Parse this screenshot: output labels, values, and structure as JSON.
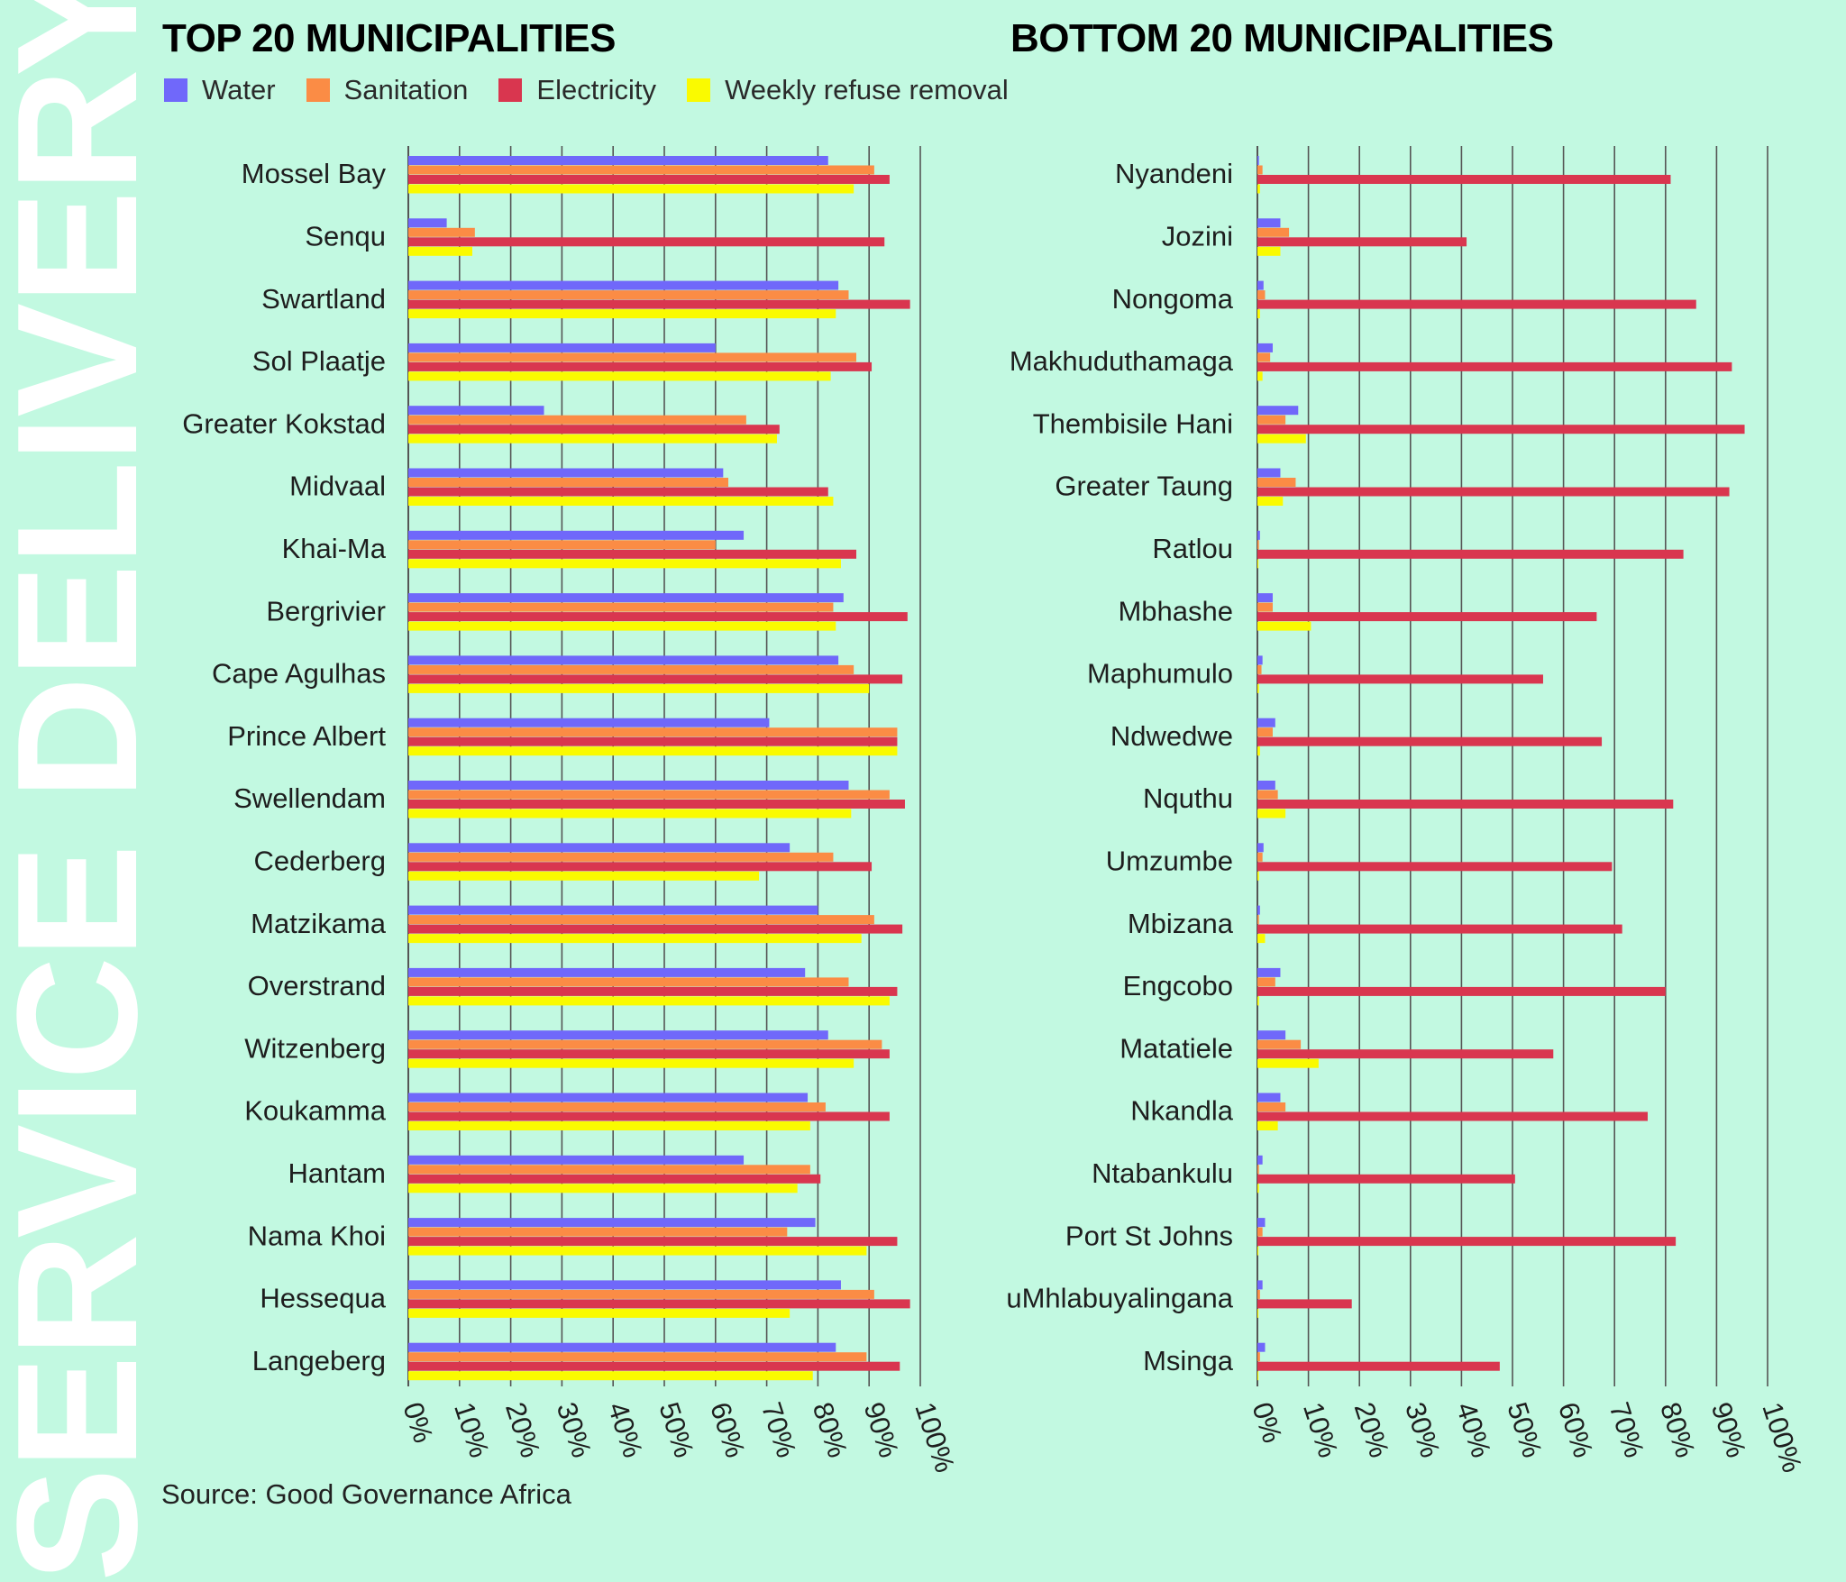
{
  "vertical_title": "SERVICE DELIVERY",
  "source": "Source: Good Governance Africa",
  "colors": {
    "water": "#7068fa",
    "sanitation": "#fb8c45",
    "electricity": "#d9364f",
    "refuse": "#fafa00",
    "grid": "#555555",
    "background": "#c2f9e1"
  },
  "legend": [
    {
      "label": "Water",
      "color": "#7068fa"
    },
    {
      "label": "Sanitation",
      "color": "#fb8c45"
    },
    {
      "label": "Electricity",
      "color": "#d9364f"
    },
    {
      "label": "Weekly refuse removal",
      "color": "#fafa00"
    }
  ],
  "chart_data": [
    {
      "type": "bar",
      "orientation": "horizontal",
      "title": "TOP 20  MUNICIPALITIES",
      "xlim": [
        0,
        100
      ],
      "ticks": [
        "0%",
        "10%",
        "20%",
        "30%",
        "40%",
        "50%",
        "60%",
        "70%",
        "80%",
        "90%",
        "100%"
      ],
      "categories": [
        "Mossel Bay",
        "Senqu",
        "Swartland",
        "Sol Plaatje",
        "Greater Kokstad",
        "Midvaal",
        "Khai-Ma",
        "Bergrivier",
        "Cape Agulhas",
        "Prince Albert",
        "Swellendam",
        "Cederberg",
        "Matzikama",
        "Overstrand",
        "Witzenberg",
        "Koukamma",
        "Hantam",
        "Nama Khoi",
        "Hessequa",
        "Langeberg"
      ],
      "series": [
        {
          "name": "Water",
          "values": [
            82,
            7.5,
            84,
            60,
            26.5,
            61.5,
            65.5,
            85,
            84,
            70.5,
            86,
            74.5,
            80,
            77.5,
            82,
            78,
            65.5,
            79.5,
            84.5,
            83.5
          ]
        },
        {
          "name": "Sanitation",
          "values": [
            91,
            13,
            86,
            87.5,
            66,
            62.5,
            60,
            83,
            87,
            95.5,
            94,
            83,
            91,
            86,
            92.5,
            81.5,
            78.5,
            74,
            91,
            89.5
          ]
        },
        {
          "name": "Electricity",
          "values": [
            94,
            93,
            98,
            90.5,
            72.5,
            82,
            87.5,
            97.5,
            96.5,
            95.5,
            97,
            90.5,
            96.5,
            95.5,
            94,
            94,
            80.5,
            95.5,
            98,
            96
          ]
        },
        {
          "name": "Weekly refuse removal",
          "values": [
            87,
            12.5,
            83.5,
            82.5,
            72,
            83,
            84.5,
            83.5,
            90,
            95.5,
            86.5,
            68.5,
            88.5,
            94,
            87,
            78.5,
            76,
            89.5,
            74.5,
            79
          ]
        }
      ]
    },
    {
      "type": "bar",
      "orientation": "horizontal",
      "title": "BOTTOM 20  MUNICIPALITIES",
      "xlim": [
        0,
        100
      ],
      "ticks": [
        "0%",
        "10%",
        "20%",
        "30%",
        "40%",
        "50%",
        "60%",
        "70%",
        "80%",
        "90%",
        "100%"
      ],
      "categories": [
        "Nyandeni",
        "Jozini",
        "Nongoma",
        "Makhuduthamaga",
        "Thembisile Hani",
        "Greater Taung",
        "Ratlou",
        "Mbhashe",
        "Maphumulo",
        "Ndwedwe",
        "Nquthu",
        "Umzumbe",
        "Mbizana",
        "Engcobo",
        "Matatiele ",
        "Nkandla",
        "Ntabankulu",
        "Port St Johns",
        "uMhlabuyalingana",
        "Msinga"
      ],
      "series": [
        {
          "name": "Water",
          "values": [
            0.3,
            4.5,
            1.2,
            3,
            8,
            4.5,
            0.5,
            3,
            1,
            3.5,
            3.5,
            1.2,
            0.5,
            4.5,
            5.5,
            4.5,
            1,
            1.5,
            1,
            1.5
          ]
        },
        {
          "name": "Sanitation",
          "values": [
            1,
            6.2,
            1.5,
            2.5,
            5.5,
            7.5,
            0.3,
            3,
            0.8,
            3,
            4,
            1,
            0.3,
            3.5,
            8.5,
            5.5,
            0.3,
            1,
            0.5,
            0.5
          ]
        },
        {
          "name": "Electricity",
          "values": [
            81,
            41,
            86,
            93,
            95.5,
            92.5,
            83.5,
            66.5,
            56,
            67.5,
            81.5,
            69.5,
            71.5,
            80,
            58,
            76.5,
            50.5,
            82,
            18.5,
            47.5
          ]
        },
        {
          "name": "Weekly refuse removal",
          "values": [
            0.5,
            4.5,
            0.5,
            1,
            9.5,
            5,
            0.2,
            10.5,
            0.3,
            0.5,
            5.5,
            0.3,
            1.5,
            0.3,
            12,
            4,
            0.3,
            0.2,
            0.2,
            0.2
          ]
        }
      ]
    }
  ]
}
